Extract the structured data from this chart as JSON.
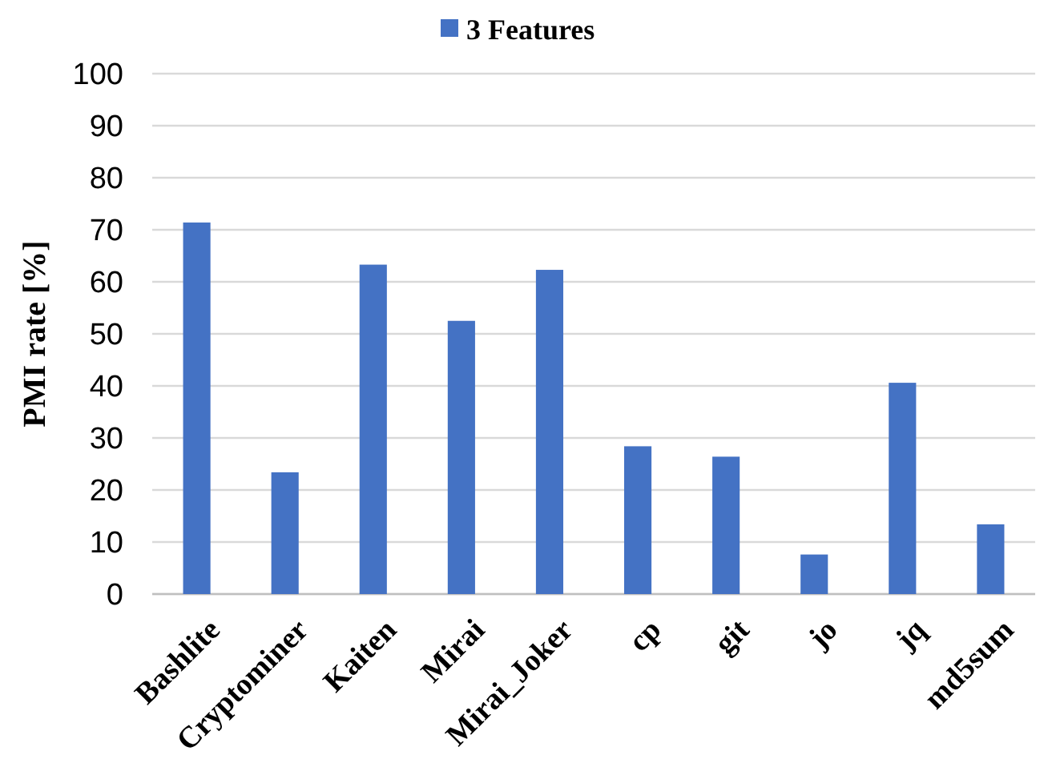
{
  "chart_data": {
    "type": "bar",
    "ylabel": "PMI rate [%]",
    "categories": [
      "Bashlite",
      "Cryptominer",
      "Kaiten",
      "Mirai",
      "Mirai_Joker",
      "cp",
      "git",
      "jo",
      "jq",
      "md5sum"
    ],
    "series": [
      {
        "name": "3 Features",
        "color": "#4472c4",
        "values": [
          71.4,
          23.4,
          63.3,
          52.5,
          62.3,
          28.4,
          26.4,
          7.6,
          40.6,
          13.4
        ]
      }
    ],
    "ylim": [
      0,
      100
    ],
    "yticks": [
      0,
      10,
      20,
      30,
      40,
      50,
      60,
      70,
      80,
      90,
      100
    ],
    "grid": "y",
    "legend": "top"
  }
}
